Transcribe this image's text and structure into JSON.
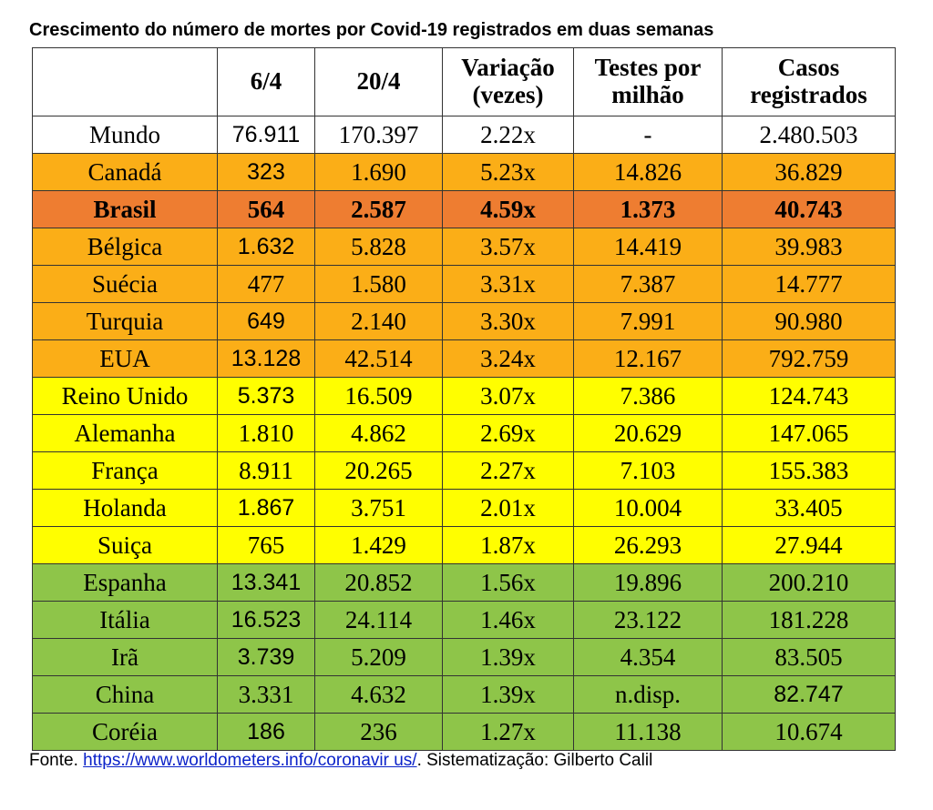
{
  "title": "Crescimento do número de mortes por Covid-19 registrados em duas semanas",
  "header": {
    "c0": "",
    "c1": "6/4",
    "c2": "20/4",
    "c3a": "Variação",
    "c3b": "(vezes)",
    "c4a": "Testes por",
    "c4b": "milhão",
    "c5a": "Casos",
    "c5b": "registrados"
  },
  "rows": [
    {
      "country": "Mundo",
      "d6": "76.911",
      "d20": "170.397",
      "var": "2.22x",
      "tests": "-",
      "cases": "2.480.503"
    },
    {
      "country": "Canadá",
      "d6": "323",
      "d20": "1.690",
      "var": "5.23x",
      "tests": "14.826",
      "cases": "36.829"
    },
    {
      "country": "Brasil",
      "d6": "564",
      "d20": "2.587",
      "var": "4.59x",
      "tests": "1.373",
      "cases": "40.743"
    },
    {
      "country": "Bélgica",
      "d6": "1.632",
      "d20": "5.828",
      "var": "3.57x",
      "tests": "14.419",
      "cases": "39.983"
    },
    {
      "country": "Suécia",
      "d6": "477",
      "d20": "1.580",
      "var": "3.31x",
      "tests": "7.387",
      "cases": "14.777"
    },
    {
      "country": "Turquia",
      "d6": "649",
      "d20": "2.140",
      "var": "3.30x",
      "tests": "7.991",
      "cases": "90.980"
    },
    {
      "country": "EUA",
      "d6": "13.128",
      "d20": "42.514",
      "var": "3.24x",
      "tests": "12.167",
      "cases": "792.759"
    },
    {
      "country": "Reino Unido",
      "d6": "5.373",
      "d20": "16.509",
      "var": "3.07x",
      "tests": "7.386",
      "cases": "124.743"
    },
    {
      "country": "Alemanha",
      "d6": "1.810",
      "d20": "4.862",
      "var": "2.69x",
      "tests": "20.629",
      "cases": "147.065"
    },
    {
      "country": "França",
      "d6": "8.911",
      "d20": "20.265",
      "var": "2.27x",
      "tests": "7.103",
      "cases": "155.383"
    },
    {
      "country": "Holanda",
      "d6": "1.867",
      "d20": "3.751",
      "var": "2.01x",
      "tests": "10.004",
      "cases": "33.405"
    },
    {
      "country": "Suiça",
      "d6": "765",
      "d20": "1.429",
      "var": "1.87x",
      "tests": "26.293",
      "cases": "27.944"
    },
    {
      "country": "Espanha",
      "d6": "13.341",
      "d20": "20.852",
      "var": "1.56x",
      "tests": "19.896",
      "cases": "200.210"
    },
    {
      "country": "Itália",
      "d6": "16.523",
      "d20": "24.114",
      "var": "1.46x",
      "tests": "23.122",
      "cases": "181.228"
    },
    {
      "country": "Irã",
      "d6": "3.739",
      "d20": "5.209",
      "var": "1.39x",
      "tests": "4.354",
      "cases": "83.505"
    },
    {
      "country": "China",
      "d6": "3.331",
      "d20": "4.632",
      "var": "1.39x",
      "tests": "n.disp.",
      "cases": "82.747"
    },
    {
      "country": "Coréia",
      "d6": "186",
      "d20": "236",
      "var": "1.27x",
      "tests": "11.138",
      "cases": "10.674"
    }
  ],
  "colors": {
    "white": "#ffffff",
    "orange": "#fbae17",
    "dark_orange": "#ee7d31",
    "yellow": "#fffe00",
    "green": "#8ec549",
    "link": "#0b22c9"
  },
  "footer": {
    "prefix": "Fonte. ",
    "link_text": "https://www.worldometers.info/coronavir   us/",
    "suffix": ". Sistematização: Gilberto Calil"
  }
}
